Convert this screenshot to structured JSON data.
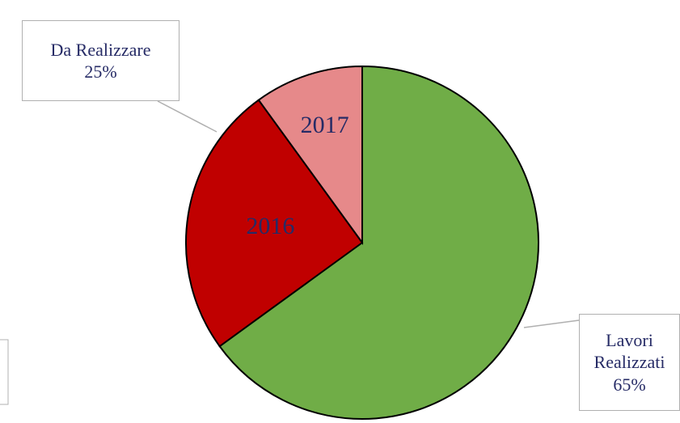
{
  "chart_data": {
    "type": "pie",
    "categories": [
      "Lavori Realizzati",
      "2016",
      "2017"
    ],
    "values": [
      65,
      25,
      10
    ],
    "value_labels": [
      "65%",
      "25%",
      null
    ],
    "annotation": "Da Realizzare",
    "colors": [
      "#70ad47",
      "#c00000",
      "#e6898a"
    ]
  }
}
